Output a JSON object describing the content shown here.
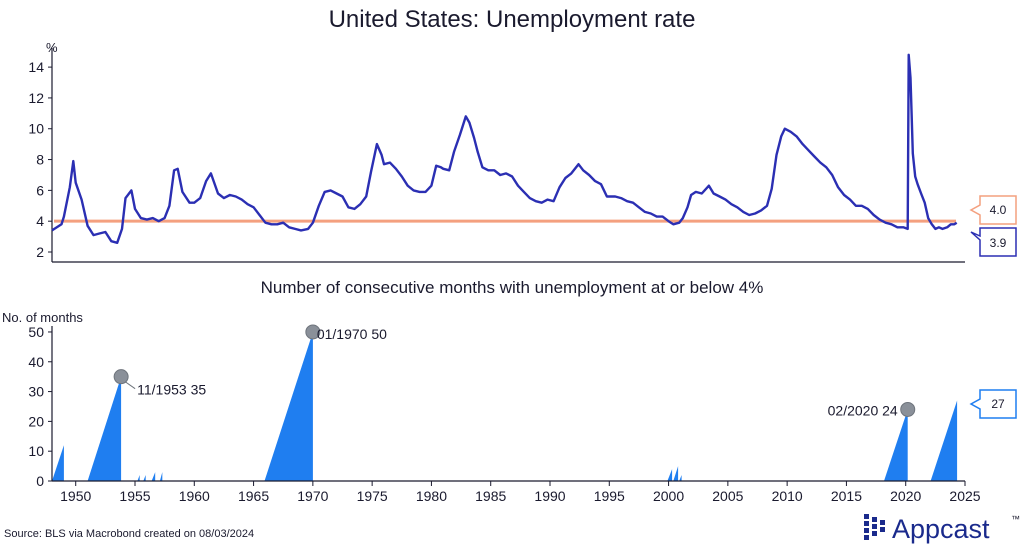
{
  "colors": {
    "line": "#2b2fb3",
    "threshold": "#f4a07f",
    "bars": "#1f7ef0",
    "marker": "#8a9099",
    "brand": "#1a2a8c",
    "text": "#1a1a2e"
  },
  "source": "Source: BLS via Macrobond created on 08/03/2024",
  "brand_name": "Appcast",
  "brand_trademark": "™",
  "chart_data": [
    {
      "type": "line",
      "title": "United States: Unemployment rate",
      "ylabel": "%",
      "ylim": [
        2,
        15.5
      ],
      "yticks": [
        2,
        4,
        6,
        8,
        10,
        12,
        14
      ],
      "xlim": [
        1948,
        2025
      ],
      "grid": false,
      "series": [
        {
          "role": "rate",
          "points": [
            [
              1948.0,
              3.4
            ],
            [
              1948.8,
              3.8
            ],
            [
              1949.0,
              4.3
            ],
            [
              1949.5,
              6.2
            ],
            [
              1949.8,
              7.9
            ],
            [
              1950.0,
              6.5
            ],
            [
              1950.5,
              5.4
            ],
            [
              1951.0,
              3.7
            ],
            [
              1951.5,
              3.1
            ],
            [
              1952.0,
              3.2
            ],
            [
              1952.5,
              3.3
            ],
            [
              1953.0,
              2.7
            ],
            [
              1953.5,
              2.6
            ],
            [
              1953.9,
              3.5
            ],
            [
              1954.2,
              5.5
            ],
            [
              1954.7,
              6.0
            ],
            [
              1955.0,
              4.8
            ],
            [
              1955.5,
              4.2
            ],
            [
              1956.0,
              4.1
            ],
            [
              1956.5,
              4.2
            ],
            [
              1957.0,
              4.0
            ],
            [
              1957.5,
              4.2
            ],
            [
              1957.9,
              5.0
            ],
            [
              1958.3,
              7.3
            ],
            [
              1958.6,
              7.4
            ],
            [
              1959.0,
              5.9
            ],
            [
              1959.6,
              5.2
            ],
            [
              1960.0,
              5.2
            ],
            [
              1960.5,
              5.5
            ],
            [
              1961.0,
              6.6
            ],
            [
              1961.4,
              7.1
            ],
            [
              1962.0,
              5.8
            ],
            [
              1962.5,
              5.5
            ],
            [
              1963.0,
              5.7
            ],
            [
              1963.5,
              5.6
            ],
            [
              1964.0,
              5.4
            ],
            [
              1964.5,
              5.1
            ],
            [
              1965.0,
              4.9
            ],
            [
              1965.5,
              4.4
            ],
            [
              1966.0,
              3.9
            ],
            [
              1966.5,
              3.8
            ],
            [
              1967.0,
              3.8
            ],
            [
              1967.5,
              3.9
            ],
            [
              1968.0,
              3.6
            ],
            [
              1968.5,
              3.5
            ],
            [
              1969.0,
              3.4
            ],
            [
              1969.6,
              3.5
            ],
            [
              1970.0,
              3.9
            ],
            [
              1970.5,
              5.0
            ],
            [
              1971.0,
              5.9
            ],
            [
              1971.5,
              6.0
            ],
            [
              1972.0,
              5.8
            ],
            [
              1972.5,
              5.6
            ],
            [
              1973.0,
              4.9
            ],
            [
              1973.5,
              4.8
            ],
            [
              1974.0,
              5.1
            ],
            [
              1974.5,
              5.6
            ],
            [
              1974.9,
              7.2
            ],
            [
              1975.4,
              9.0
            ],
            [
              1975.8,
              8.3
            ],
            [
              1976.0,
              7.7
            ],
            [
              1976.5,
              7.8
            ],
            [
              1977.0,
              7.4
            ],
            [
              1977.5,
              6.9
            ],
            [
              1978.0,
              6.3
            ],
            [
              1978.5,
              6.0
            ],
            [
              1979.0,
              5.9
            ],
            [
              1979.5,
              5.9
            ],
            [
              1980.0,
              6.3
            ],
            [
              1980.4,
              7.6
            ],
            [
              1980.8,
              7.5
            ],
            [
              1981.0,
              7.4
            ],
            [
              1981.5,
              7.3
            ],
            [
              1981.9,
              8.5
            ],
            [
              1982.4,
              9.6
            ],
            [
              1982.9,
              10.8
            ],
            [
              1983.2,
              10.4
            ],
            [
              1983.6,
              9.4
            ],
            [
              1983.9,
              8.5
            ],
            [
              1984.3,
              7.5
            ],
            [
              1984.8,
              7.3
            ],
            [
              1985.3,
              7.3
            ],
            [
              1985.8,
              7.0
            ],
            [
              1986.3,
              7.1
            ],
            [
              1986.8,
              6.9
            ],
            [
              1987.3,
              6.3
            ],
            [
              1987.8,
              5.9
            ],
            [
              1988.3,
              5.5
            ],
            [
              1988.8,
              5.3
            ],
            [
              1989.3,
              5.2
            ],
            [
              1989.8,
              5.4
            ],
            [
              1990.3,
              5.3
            ],
            [
              1990.8,
              6.2
            ],
            [
              1991.3,
              6.8
            ],
            [
              1991.8,
              7.1
            ],
            [
              1992.4,
              7.7
            ],
            [
              1992.8,
              7.3
            ],
            [
              1993.3,
              7.0
            ],
            [
              1993.8,
              6.6
            ],
            [
              1994.3,
              6.4
            ],
            [
              1994.8,
              5.6
            ],
            [
              1995.5,
              5.6
            ],
            [
              1996.0,
              5.5
            ],
            [
              1996.5,
              5.3
            ],
            [
              1997.0,
              5.2
            ],
            [
              1997.5,
              4.9
            ],
            [
              1998.0,
              4.6
            ],
            [
              1998.5,
              4.5
            ],
            [
              1999.0,
              4.3
            ],
            [
              1999.5,
              4.3
            ],
            [
              2000.0,
              4.0
            ],
            [
              2000.4,
              3.8
            ],
            [
              2000.9,
              3.9
            ],
            [
              2001.2,
              4.2
            ],
            [
              2001.6,
              4.9
            ],
            [
              2001.9,
              5.7
            ],
            [
              2002.3,
              5.9
            ],
            [
              2002.8,
              5.8
            ],
            [
              2003.4,
              6.3
            ],
            [
              2003.8,
              5.8
            ],
            [
              2004.3,
              5.6
            ],
            [
              2004.8,
              5.4
            ],
            [
              2005.3,
              5.1
            ],
            [
              2005.8,
              4.9
            ],
            [
              2006.3,
              4.6
            ],
            [
              2006.8,
              4.4
            ],
            [
              2007.3,
              4.5
            ],
            [
              2007.8,
              4.7
            ],
            [
              2008.3,
              5.0
            ],
            [
              2008.7,
              6.1
            ],
            [
              2009.1,
              8.3
            ],
            [
              2009.5,
              9.5
            ],
            [
              2009.8,
              10.0
            ],
            [
              2010.3,
              9.8
            ],
            [
              2010.8,
              9.5
            ],
            [
              2011.3,
              9.0
            ],
            [
              2011.8,
              8.6
            ],
            [
              2012.3,
              8.2
            ],
            [
              2012.8,
              7.8
            ],
            [
              2013.3,
              7.5
            ],
            [
              2013.8,
              7.0
            ],
            [
              2014.3,
              6.2
            ],
            [
              2014.8,
              5.7
            ],
            [
              2015.3,
              5.4
            ],
            [
              2015.8,
              5.0
            ],
            [
              2016.3,
              5.0
            ],
            [
              2016.8,
              4.8
            ],
            [
              2017.3,
              4.4
            ],
            [
              2017.8,
              4.1
            ],
            [
              2018.3,
              3.9
            ],
            [
              2018.8,
              3.8
            ],
            [
              2019.3,
              3.6
            ],
            [
              2019.8,
              3.6
            ],
            [
              2020.17,
              3.5
            ],
            [
              2020.25,
              14.8
            ],
            [
              2020.4,
              13.3
            ],
            [
              2020.5,
              11.0
            ],
            [
              2020.6,
              8.4
            ],
            [
              2020.8,
              6.9
            ],
            [
              2021.0,
              6.4
            ],
            [
              2021.3,
              5.8
            ],
            [
              2021.6,
              5.2
            ],
            [
              2021.9,
              4.2
            ],
            [
              2022.2,
              3.8
            ],
            [
              2022.5,
              3.5
            ],
            [
              2022.8,
              3.6
            ],
            [
              2023.1,
              3.5
            ],
            [
              2023.5,
              3.6
            ],
            [
              2023.8,
              3.8
            ],
            [
              2024.1,
              3.8
            ],
            [
              2024.3,
              3.9
            ]
          ]
        },
        {
          "role": "threshold",
          "value": 4.0
        }
      ],
      "labels": {
        "threshold": "4.0",
        "latest": "3.9"
      }
    },
    {
      "type": "area",
      "title": "Number of consecutive months with unemployment at or below 4%",
      "ylabel": "No. of months",
      "ylim": [
        0,
        52
      ],
      "yticks": [
        0,
        10,
        20,
        30,
        40,
        50
      ],
      "xlim": [
        1948,
        2025
      ],
      "xticks": [
        1950,
        1955,
        1960,
        1965,
        1970,
        1975,
        1980,
        1985,
        1990,
        1995,
        2000,
        2005,
        2010,
        2015,
        2020,
        2025
      ],
      "runs": [
        {
          "start": 1948.0,
          "end": 1949.0,
          "peak": 12
        },
        {
          "start": 1951.0,
          "end": 1953.83,
          "peak": 35
        },
        {
          "start": 1955.2,
          "end": 1955.4,
          "peak": 2
        },
        {
          "start": 1955.7,
          "end": 1955.9,
          "peak": 2
        },
        {
          "start": 1956.4,
          "end": 1956.7,
          "peak": 3
        },
        {
          "start": 1957.1,
          "end": 1957.3,
          "peak": 3
        },
        {
          "start": 1965.92,
          "end": 1970.0,
          "peak": 50
        },
        {
          "start": 1999.9,
          "end": 2000.3,
          "peak": 4
        },
        {
          "start": 2000.4,
          "end": 2000.8,
          "peak": 5
        },
        {
          "start": 2000.9,
          "end": 2001.1,
          "peak": 2
        },
        {
          "start": 2018.17,
          "end": 2020.17,
          "peak": 24
        },
        {
          "start": 2022.1,
          "end": 2024.33,
          "peak": 27
        }
      ],
      "annotations": [
        {
          "x": 1953.83,
          "y": 35,
          "text": "11/1953 35"
        },
        {
          "x": 1970.0,
          "y": 50,
          "text": "01/1970 50"
        },
        {
          "x": 2020.17,
          "y": 24,
          "text": "02/2020 24"
        }
      ],
      "latest_label": "27"
    }
  ]
}
